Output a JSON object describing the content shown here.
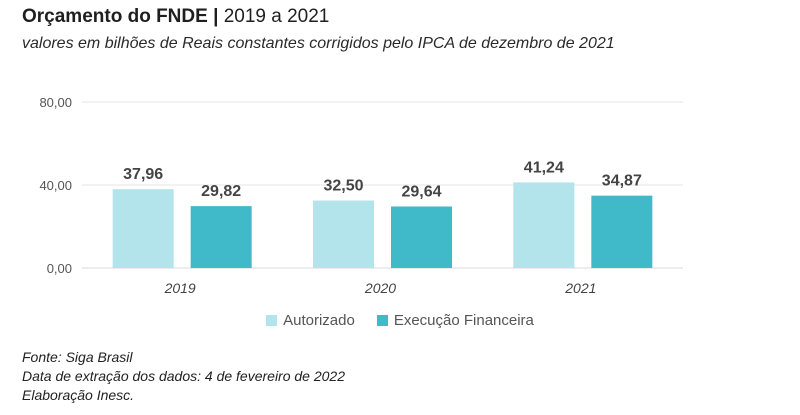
{
  "header": {
    "title_bold": "Orçamento do FNDE |",
    "title_rest": "2019 a 2021",
    "subtitle": "valores em bilhões de Reais constantes corrigidos pelo IPCA de dezembro de 2021"
  },
  "chart_data": {
    "type": "bar",
    "categories": [
      "2019",
      "2020",
      "2021"
    ],
    "series": [
      {
        "name": "Autorizado",
        "values": [
          37.96,
          32.5,
          41.24
        ],
        "labels": [
          "37,96",
          "32,50",
          "41,24"
        ],
        "color": "#b3e3eb"
      },
      {
        "name": "Execução Financeira",
        "values": [
          29.82,
          29.64,
          34.87
        ],
        "labels": [
          "29,82",
          "29,64",
          "34,87"
        ],
        "color": "#40b9c9"
      }
    ],
    "yticks": [
      0,
      40,
      80
    ],
    "ytick_labels": [
      "0,00",
      "40,00",
      "80,00"
    ],
    "ylim": [
      0,
      80
    ],
    "grid": true,
    "legend_position": "bottom",
    "gridline_color": "#e6e6e6"
  },
  "notes": [
    "Fonte: Siga Brasil",
    "Data de extração dos dados: 4 de fevereiro de 2022",
    "Elaboração Inesc."
  ]
}
